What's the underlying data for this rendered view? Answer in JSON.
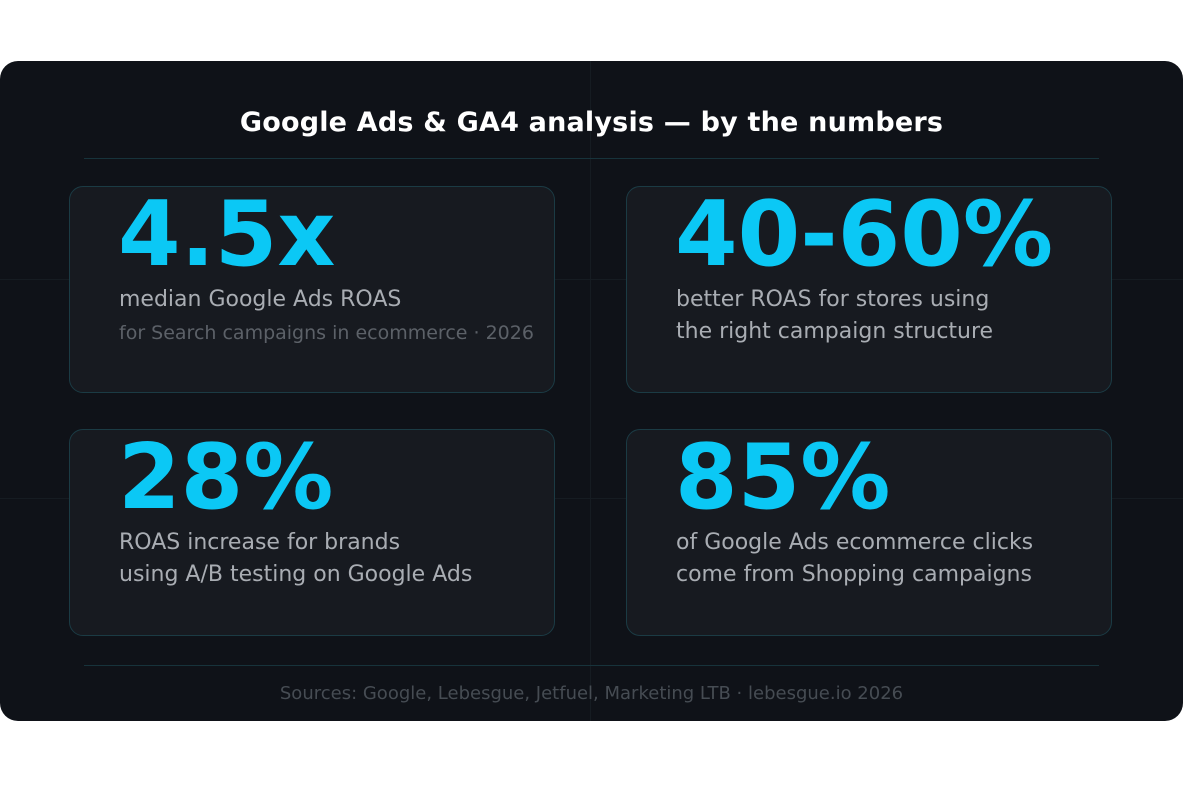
{
  "title": "Google Ads & GA4 analysis — by the numbers",
  "cards": [
    {
      "stat": "4.5x",
      "line1": "median Google Ads ROAS",
      "line2": "for Search campaigns in ecommerce · 2026"
    },
    {
      "stat": "40-60%",
      "line1": "better ROAS for stores using",
      "line2": "the right campaign structure"
    },
    {
      "stat": "28%",
      "line1": "ROAS increase for brands",
      "line2": "using A/B testing on Google Ads"
    },
    {
      "stat": "85%",
      "line1": "of Google Ads ecommerce clicks",
      "line2": "come from Shopping campaigns"
    }
  ],
  "footer": "Sources: Google, Lebesgue, Jetfuel, Marketing LTB · lebesgue.io 2026",
  "colors": {
    "accent": "#0bc8f5",
    "background": "#0f1218",
    "card": "#171a20"
  }
}
